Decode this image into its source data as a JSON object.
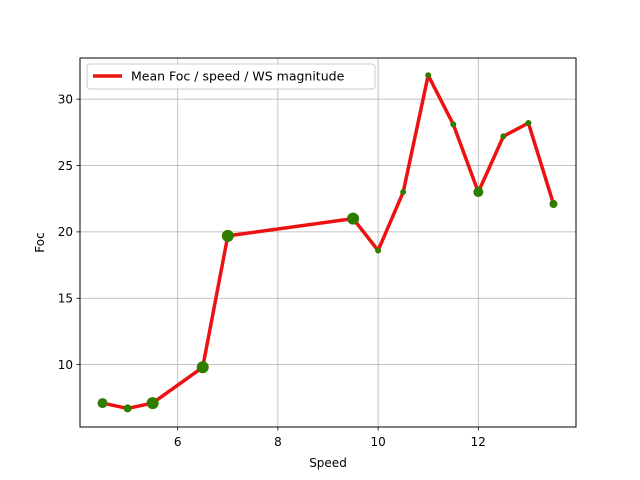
{
  "chart_data": {
    "type": "line",
    "title": "",
    "xlabel": "Speed",
    "ylabel": "Foc",
    "xlim": [
      4.05,
      13.95
    ],
    "ylim": [
      5.3,
      33.1
    ],
    "xticks": [
      6,
      8,
      10,
      12
    ],
    "yticks": [
      10,
      15,
      20,
      25,
      30
    ],
    "grid": true,
    "legend": {
      "position": "top-left"
    },
    "series": [
      {
        "name": "Mean Foc / speed / WS magnitude",
        "color": "#ee1111",
        "marker_color": "#2e7d00",
        "x": [
          4.5,
          5.0,
          5.5,
          6.5,
          7.0,
          9.5,
          10.0,
          10.5,
          11.0,
          11.5,
          12.0,
          12.5,
          13.0,
          13.5
        ],
        "y": [
          7.1,
          6.7,
          7.1,
          9.8,
          19.7,
          21.0,
          18.6,
          23.0,
          31.8,
          28.1,
          23.0,
          27.2,
          28.2,
          22.1
        ],
        "marker_size": [
          5,
          4,
          6,
          6,
          6,
          6,
          3,
          3,
          3,
          3,
          5,
          3,
          3,
          4
        ]
      }
    ]
  }
}
